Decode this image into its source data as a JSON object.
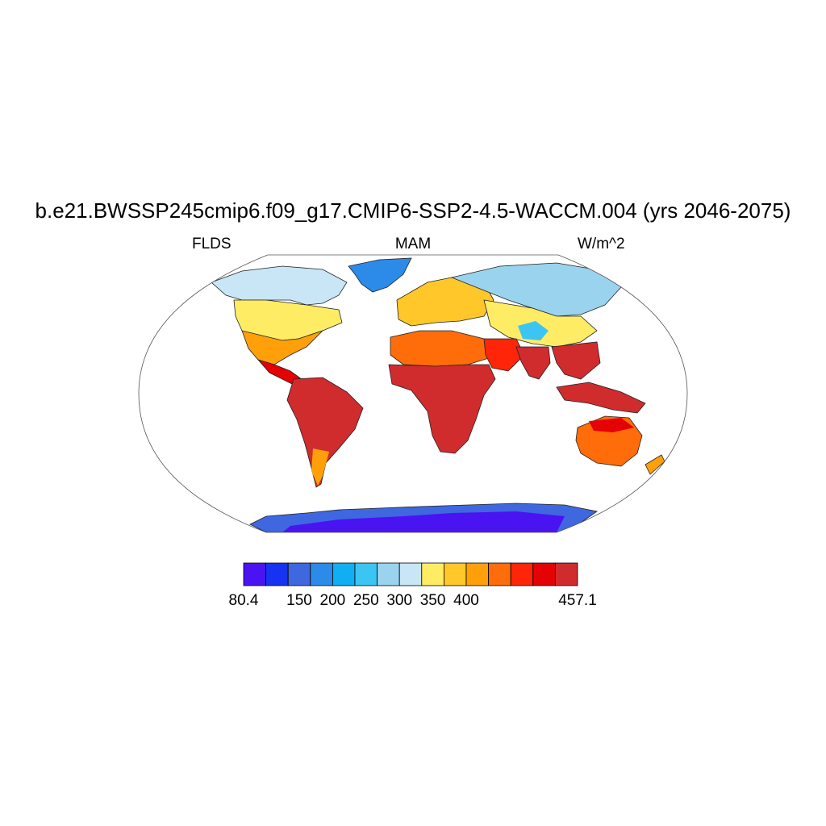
{
  "title": "b.e21.BWSSP245cmip6.f09_g17.CMIP6-SSP2-4.5-WACCM.004 (yrs 2046-2075)",
  "left_string": "FLDS",
  "center_string": "MAM",
  "right_string": "W/m^2",
  "map": {
    "projection": "Robinson-like ellipse, global",
    "variable": "FLDS",
    "season": "MAM",
    "units": "W/m^2"
  },
  "colorbar": {
    "colors": [
      "#4a13f2",
      "#1732f0",
      "#3f67e0",
      "#2c8ae8",
      "#12aef3",
      "#3cc5f3",
      "#9ad3ee",
      "#c8e6f5",
      "#ffec65",
      "#ffc729",
      "#ffa00b",
      "#ff6c0a",
      "#ff2508",
      "#e40205",
      "#d02c2e"
    ],
    "tick_labels": [
      "80.4",
      "150",
      "200",
      "250",
      "300",
      "350",
      "400",
      "457.1"
    ],
    "tick_boxes": [
      0,
      2.5,
      4,
      5.5,
      7,
      8.5,
      10,
      12
    ]
  }
}
